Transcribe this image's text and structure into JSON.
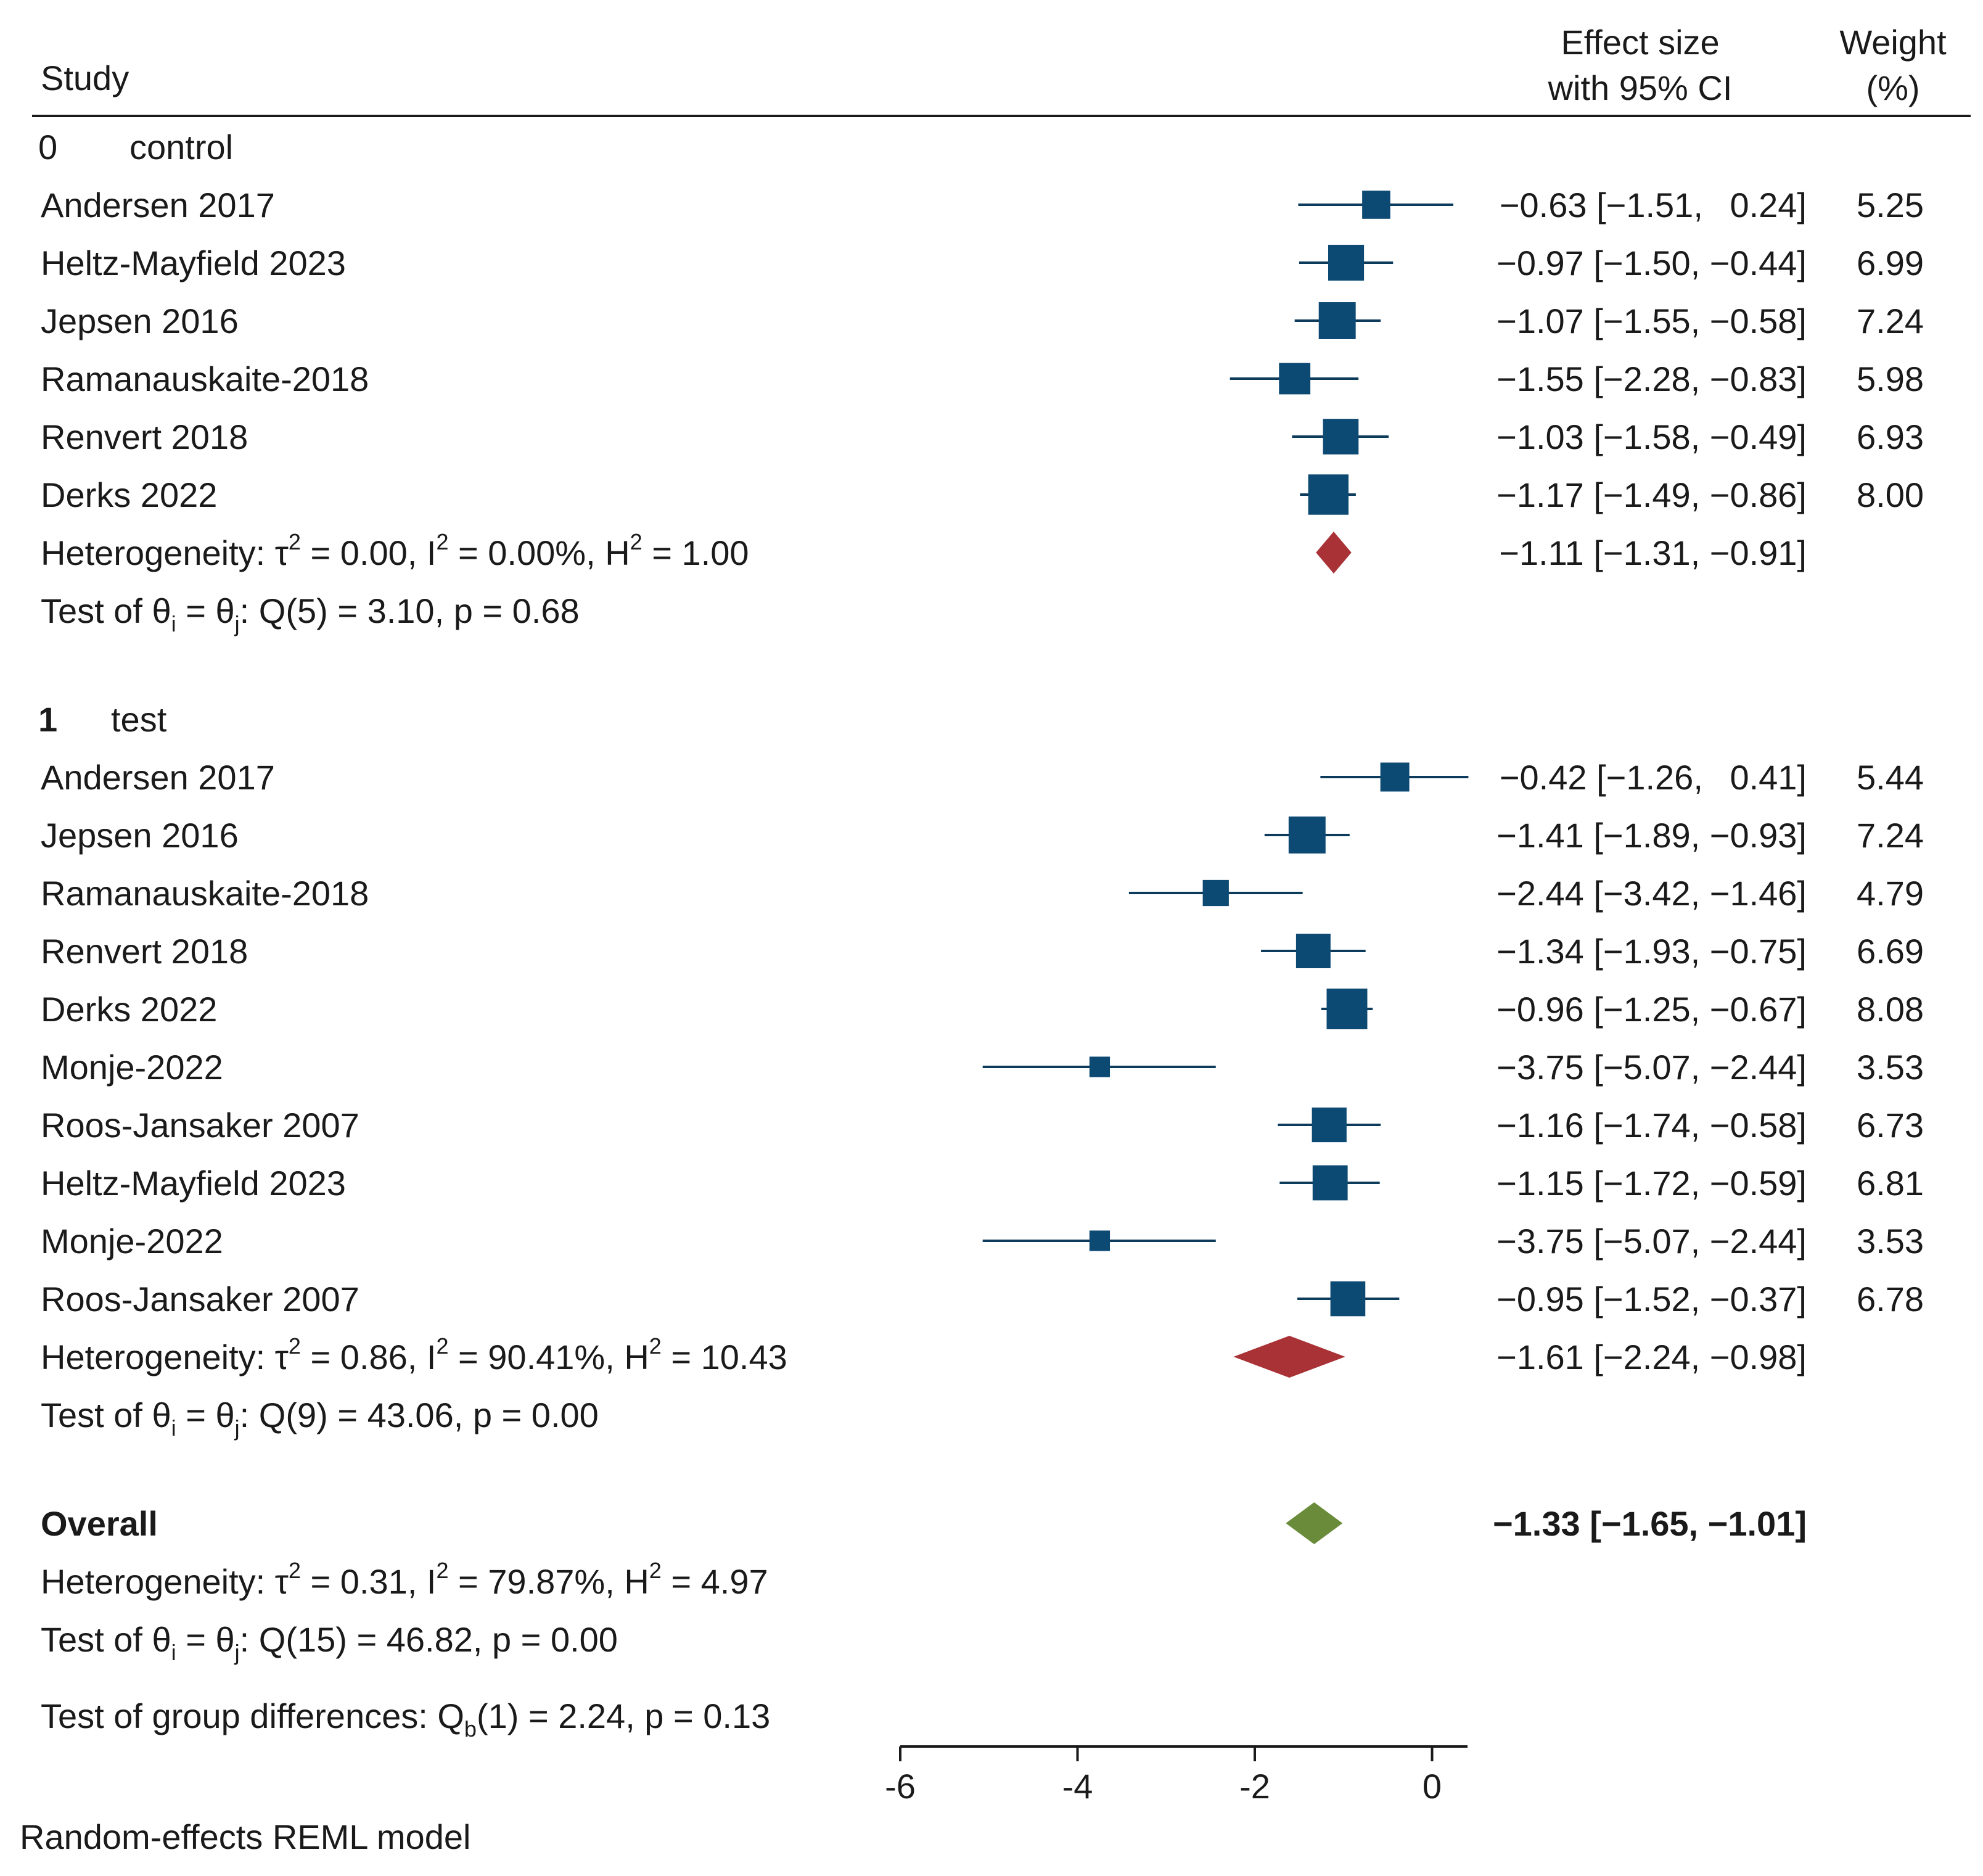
{
  "chart_data": {
    "type": "forest",
    "header": {
      "study": "Study",
      "effect_line1": "Effect size",
      "effect_line2": "with 95% CI",
      "weight_line1": "Weight",
      "weight_line2": "(%)"
    },
    "groups": [
      {
        "code": "0",
        "name": "control",
        "studies": [
          {
            "label": "Andersen 2017",
            "es": -0.63,
            "lo": -1.51,
            "hi": 0.24,
            "ci_text": "−0.63 [−1.51,  0.24]",
            "weight": "5.25",
            "w": 5.25
          },
          {
            "label": "Heltz-Mayfield 2023",
            "es": -0.97,
            "lo": -1.5,
            "hi": -0.44,
            "ci_text": "−0.97 [−1.50, −0.44]",
            "weight": "6.99",
            "w": 6.99
          },
          {
            "label": "Jepsen 2016",
            "es": -1.07,
            "lo": -1.55,
            "hi": -0.58,
            "ci_text": "−1.07 [−1.55, −0.58]",
            "weight": "7.24",
            "w": 7.24
          },
          {
            "label": "Ramanauskaite-2018",
            "es": -1.55,
            "lo": -2.28,
            "hi": -0.83,
            "ci_text": "−1.55 [−2.28, −0.83]",
            "weight": "5.98",
            "w": 5.98
          },
          {
            "label": "Renvert 2018",
            "es": -1.03,
            "lo": -1.58,
            "hi": -0.49,
            "ci_text": "−1.03 [−1.58, −0.49]",
            "weight": "6.93",
            "w": 6.93
          },
          {
            "label": "Derks 2022",
            "es": -1.17,
            "lo": -1.49,
            "hi": -0.86,
            "ci_text": "−1.17 [−1.49, −0.86]",
            "weight": "8.00",
            "w": 8.0
          }
        ],
        "summary": {
          "es": -1.11,
          "lo": -1.31,
          "hi": -0.91,
          "ci_text": "−1.11 [−1.31, −0.91]"
        },
        "heterogeneity": {
          "tau2": "0.00",
          "i2": "0.00%",
          "h2": "1.00"
        },
        "test": {
          "df": "5",
          "q": "3.10",
          "p": "0.68"
        }
      },
      {
        "code": "1",
        "name": "test",
        "studies": [
          {
            "label": "Andersen 2017",
            "es": -0.42,
            "lo": -1.26,
            "hi": 0.41,
            "ci_text": "−0.42 [−1.26,  0.41]",
            "weight": "5.44",
            "w": 5.44
          },
          {
            "label": "Jepsen 2016",
            "es": -1.41,
            "lo": -1.89,
            "hi": -0.93,
            "ci_text": "−1.41 [−1.89, −0.93]",
            "weight": "7.24",
            "w": 7.24
          },
          {
            "label": "Ramanauskaite-2018",
            "es": -2.44,
            "lo": -3.42,
            "hi": -1.46,
            "ci_text": "−2.44 [−3.42, −1.46]",
            "weight": "4.79",
            "w": 4.79
          },
          {
            "label": "Renvert 2018",
            "es": -1.34,
            "lo": -1.93,
            "hi": -0.75,
            "ci_text": "−1.34 [−1.93, −0.75]",
            "weight": "6.69",
            "w": 6.69
          },
          {
            "label": "Derks 2022",
            "es": -0.96,
            "lo": -1.25,
            "hi": -0.67,
            "ci_text": "−0.96 [−1.25, −0.67]",
            "weight": "8.08",
            "w": 8.08
          },
          {
            "label": "Monje-2022",
            "es": -3.75,
            "lo": -5.07,
            "hi": -2.44,
            "ci_text": "−3.75 [−5.07, −2.44]",
            "weight": "3.53",
            "w": 3.53
          },
          {
            "label": "Roos-Jansaker 2007",
            "es": -1.16,
            "lo": -1.74,
            "hi": -0.58,
            "ci_text": "−1.16 [−1.74, −0.58]",
            "weight": "6.73",
            "w": 6.73
          },
          {
            "label": "Heltz-Mayfield 2023",
            "es": -1.15,
            "lo": -1.72,
            "hi": -0.59,
            "ci_text": "−1.15 [−1.72, −0.59]",
            "weight": "6.81",
            "w": 6.81
          },
          {
            "label": "Monje-2022",
            "es": -3.75,
            "lo": -5.07,
            "hi": -2.44,
            "ci_text": "−3.75 [−5.07, −2.44]",
            "weight": "3.53",
            "w": 3.53
          },
          {
            "label": "Roos-Jansaker 2007",
            "es": -0.95,
            "lo": -1.52,
            "hi": -0.37,
            "ci_text": "−0.95 [−1.52, −0.37]",
            "weight": "6.78",
            "w": 6.78
          }
        ],
        "summary": {
          "es": -1.61,
          "lo": -2.24,
          "hi": -0.98,
          "ci_text": "−1.61 [−2.24, −0.98]"
        },
        "heterogeneity": {
          "tau2": "0.86",
          "i2": "90.41%",
          "h2": "10.43"
        },
        "test": {
          "df": "9",
          "q": "43.06",
          "p": "0.00"
        }
      }
    ],
    "overall": {
      "label": "Overall",
      "es": -1.33,
      "lo": -1.65,
      "hi": -1.01,
      "ci_text": "−1.33 [−1.65, −1.01]",
      "heterogeneity": {
        "tau2": "0.31",
        "i2": "79.87%",
        "h2": "4.97"
      },
      "test": {
        "df": "15",
        "q": "46.82",
        "p": "0.00"
      }
    },
    "group_test": {
      "df": "1",
      "q": "2.24",
      "p": "0.13"
    },
    "x_axis": {
      "ticks": [
        -6,
        -4,
        -2,
        0
      ],
      "tick_labels": [
        "-6",
        "-4",
        "-2",
        "0"
      ],
      "xlim": [
        -6,
        0.4
      ]
    },
    "footnote": "Random-effects REML model",
    "colors": {
      "marker": "#0d4a73",
      "group_diamond": "#a83236",
      "overall_diamond": "#6a8c3a",
      "line": "#0d3b5c",
      "text": "#1a1a1a"
    }
  }
}
